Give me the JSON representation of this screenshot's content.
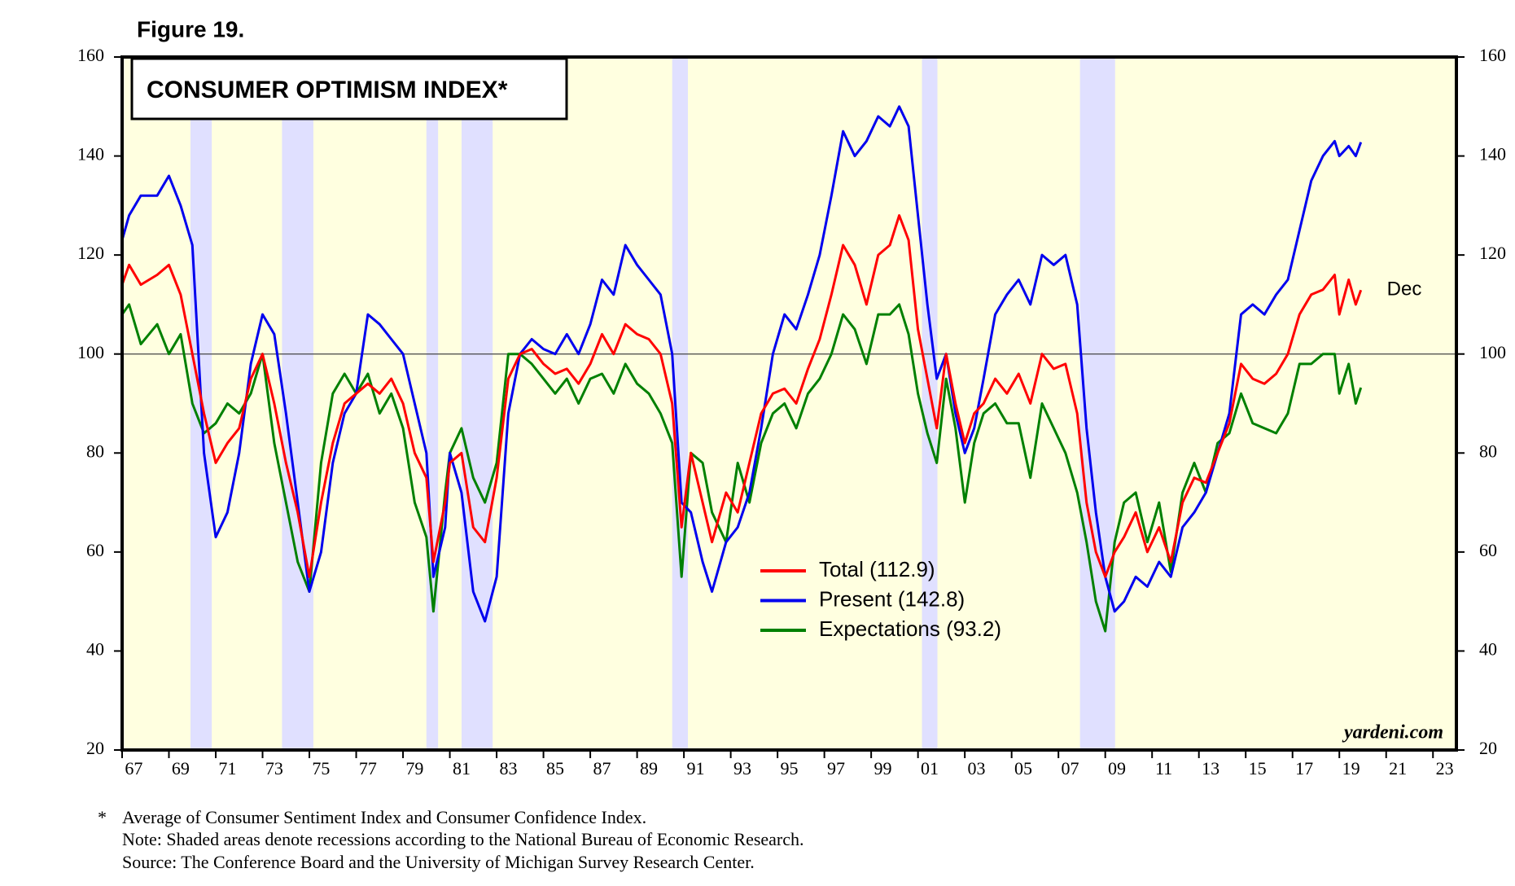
{
  "chart_data": {
    "type": "line",
    "figure_label": "Figure 19.",
    "title": "CONSUMER OPTIMISM INDEX*",
    "x": [
      1967.0,
      1967.3,
      1967.8,
      1968.5,
      1969.0,
      1969.5,
      1970.0,
      1970.5,
      1971.0,
      1971.5,
      1972.0,
      1972.5,
      1973.0,
      1973.5,
      1974.0,
      1974.5,
      1975.0,
      1975.5,
      1976.0,
      1976.5,
      1977.0,
      1977.5,
      1978.0,
      1978.5,
      1979.0,
      1979.5,
      1980.0,
      1980.3,
      1980.8,
      1981.0,
      1981.5,
      1982.0,
      1982.5,
      1983.0,
      1983.5,
      1984.0,
      1984.5,
      1985.0,
      1985.5,
      1986.0,
      1986.5,
      1987.0,
      1987.5,
      1988.0,
      1988.5,
      1989.0,
      1989.5,
      1990.0,
      1990.5,
      1990.9,
      1991.3,
      1991.8,
      1992.2,
      1992.8,
      1993.3,
      1993.8,
      1994.3,
      1994.8,
      1995.3,
      1995.8,
      1996.3,
      1996.8,
      1997.3,
      1997.8,
      1998.3,
      1998.8,
      1999.3,
      1999.8,
      2000.2,
      2000.6,
      2001.0,
      2001.4,
      2001.8,
      2002.2,
      2002.6,
      2003.0,
      2003.4,
      2003.8,
      2004.3,
      2004.8,
      2005.3,
      2005.8,
      2006.3,
      2006.8,
      2007.3,
      2007.8,
      2008.2,
      2008.6,
      2009.0,
      2009.4,
      2009.8,
      2010.3,
      2010.8,
      2011.3,
      2011.8,
      2012.3,
      2012.8,
      2013.3,
      2013.8,
      2014.3,
      2014.8,
      2015.3,
      2015.8,
      2016.3,
      2016.8,
      2017.3,
      2017.8,
      2018.3,
      2018.8,
      2019.0,
      2019.4,
      2019.7,
      2019.92
    ],
    "series": [
      {
        "name": "Total (112.9)",
        "color": "#ff0000",
        "values": [
          114,
          118,
          114,
          116,
          118,
          112,
          100,
          88,
          78,
          82,
          85,
          95,
          100,
          90,
          78,
          68,
          55,
          70,
          82,
          90,
          92,
          94,
          92,
          95,
          90,
          80,
          75,
          58,
          70,
          78,
          80,
          65,
          62,
          75,
          95,
          100,
          101,
          98,
          96,
          97,
          94,
          98,
          104,
          100,
          106,
          104,
          103,
          100,
          90,
          65,
          80,
          70,
          62,
          72,
          68,
          78,
          88,
          92,
          93,
          90,
          97,
          103,
          112,
          122,
          118,
          110,
          120,
          122,
          128,
          123,
          105,
          95,
          85,
          100,
          90,
          82,
          88,
          90,
          95,
          92,
          96,
          90,
          100,
          97,
          98,
          88,
          70,
          60,
          55,
          60,
          63,
          68,
          60,
          65,
          58,
          70,
          75,
          74,
          80,
          86,
          98,
          95,
          94,
          96,
          100,
          108,
          112,
          113,
          116,
          108,
          115,
          110,
          112.9
        ]
      },
      {
        "name": "Present (142.8)",
        "color": "#0000ee",
        "values": [
          123,
          128,
          132,
          132,
          136,
          130,
          122,
          80,
          63,
          68,
          80,
          98,
          108,
          104,
          88,
          70,
          52,
          60,
          78,
          88,
          92,
          108,
          106,
          103,
          100,
          90,
          80,
          55,
          65,
          80,
          72,
          52,
          46,
          55,
          88,
          100,
          103,
          101,
          100,
          104,
          100,
          106,
          115,
          112,
          122,
          118,
          115,
          112,
          100,
          70,
          68,
          58,
          52,
          62,
          65,
          72,
          85,
          100,
          108,
          105,
          112,
          120,
          132,
          145,
          140,
          143,
          148,
          146,
          150,
          146,
          128,
          110,
          95,
          100,
          88,
          80,
          85,
          95,
          108,
          112,
          115,
          110,
          120,
          118,
          120,
          110,
          85,
          68,
          55,
          48,
          50,
          55,
          53,
          58,
          55,
          65,
          68,
          72,
          80,
          88,
          108,
          110,
          108,
          112,
          115,
          125,
          135,
          140,
          143,
          140,
          142,
          140,
          142.8
        ]
      },
      {
        "name": "Expectations (93.2)",
        "color": "#008000",
        "values": [
          108,
          110,
          102,
          106,
          100,
          104,
          90,
          84,
          86,
          90,
          88,
          92,
          100,
          82,
          70,
          58,
          52,
          78,
          92,
          96,
          92,
          96,
          88,
          92,
          85,
          70,
          63,
          48,
          72,
          80,
          85,
          75,
          70,
          78,
          100,
          100,
          98,
          95,
          92,
          95,
          90,
          95,
          96,
          92,
          98,
          94,
          92,
          88,
          82,
          55,
          80,
          78,
          68,
          62,
          78,
          70,
          82,
          88,
          90,
          85,
          92,
          95,
          100,
          108,
          105,
          98,
          108,
          108,
          110,
          104,
          92,
          84,
          78,
          95,
          85,
          70,
          82,
          88,
          90,
          86,
          86,
          75,
          90,
          85,
          80,
          72,
          62,
          50,
          44,
          62,
          70,
          72,
          62,
          70,
          56,
          72,
          78,
          72,
          82,
          84,
          92,
          86,
          85,
          84,
          88,
          98,
          98,
          100,
          100,
          92,
          98,
          90,
          93.2
        ]
      }
    ],
    "xlim": [
      1967,
      2024
    ],
    "xticks": [
      {
        "value": 1967,
        "label": "67"
      },
      {
        "value": 1969,
        "label": "69"
      },
      {
        "value": 1971,
        "label": "71"
      },
      {
        "value": 1973,
        "label": "73"
      },
      {
        "value": 1975,
        "label": "75"
      },
      {
        "value": 1977,
        "label": "77"
      },
      {
        "value": 1979,
        "label": "79"
      },
      {
        "value": 1981,
        "label": "81"
      },
      {
        "value": 1983,
        "label": "83"
      },
      {
        "value": 1985,
        "label": "85"
      },
      {
        "value": 1987,
        "label": "87"
      },
      {
        "value": 1989,
        "label": "89"
      },
      {
        "value": 1991,
        "label": "91"
      },
      {
        "value": 1993,
        "label": "93"
      },
      {
        "value": 1995,
        "label": "95"
      },
      {
        "value": 1997,
        "label": "97"
      },
      {
        "value": 1999,
        "label": "99"
      },
      {
        "value": 2001,
        "label": "01"
      },
      {
        "value": 2003,
        "label": "03"
      },
      {
        "value": 2005,
        "label": "05"
      },
      {
        "value": 2007,
        "label": "07"
      },
      {
        "value": 2009,
        "label": "09"
      },
      {
        "value": 2011,
        "label": "11"
      },
      {
        "value": 2013,
        "label": "13"
      },
      {
        "value": 2015,
        "label": "15"
      },
      {
        "value": 2017,
        "label": "17"
      },
      {
        "value": 2019,
        "label": "19"
      },
      {
        "value": 2021,
        "label": "21"
      },
      {
        "value": 2023,
        "label": "23"
      }
    ],
    "ylim": [
      20,
      160
    ],
    "yticks": [
      20,
      40,
      60,
      80,
      100,
      120,
      140,
      160
    ],
    "y2lim": [
      20,
      160
    ],
    "y2ticks": [
      20,
      40,
      60,
      80,
      100,
      120,
      140,
      160
    ],
    "hline": 100,
    "recessions": [
      [
        1969.92,
        1970.83
      ],
      [
        1973.83,
        1975.17
      ],
      [
        1980.0,
        1980.5
      ],
      [
        1981.5,
        1982.83
      ],
      [
        1990.5,
        1991.17
      ],
      [
        2001.17,
        2001.83
      ],
      [
        2007.92,
        2009.42
      ]
    ],
    "recession_color": "#e0e0ff",
    "background_color": "#ffffe0",
    "legend": "lower-center",
    "annotation": "Dec",
    "source_mark": "yardeni.com",
    "footnote_marker": "*",
    "notes": [
      "Average of Consumer Sentiment Index and Consumer Confidence Index.",
      "Note: Shaded areas denote recessions according to the National Bureau of Economic Research.",
      "Source: The Conference Board and the University of Michigan Survey Research Center."
    ]
  }
}
